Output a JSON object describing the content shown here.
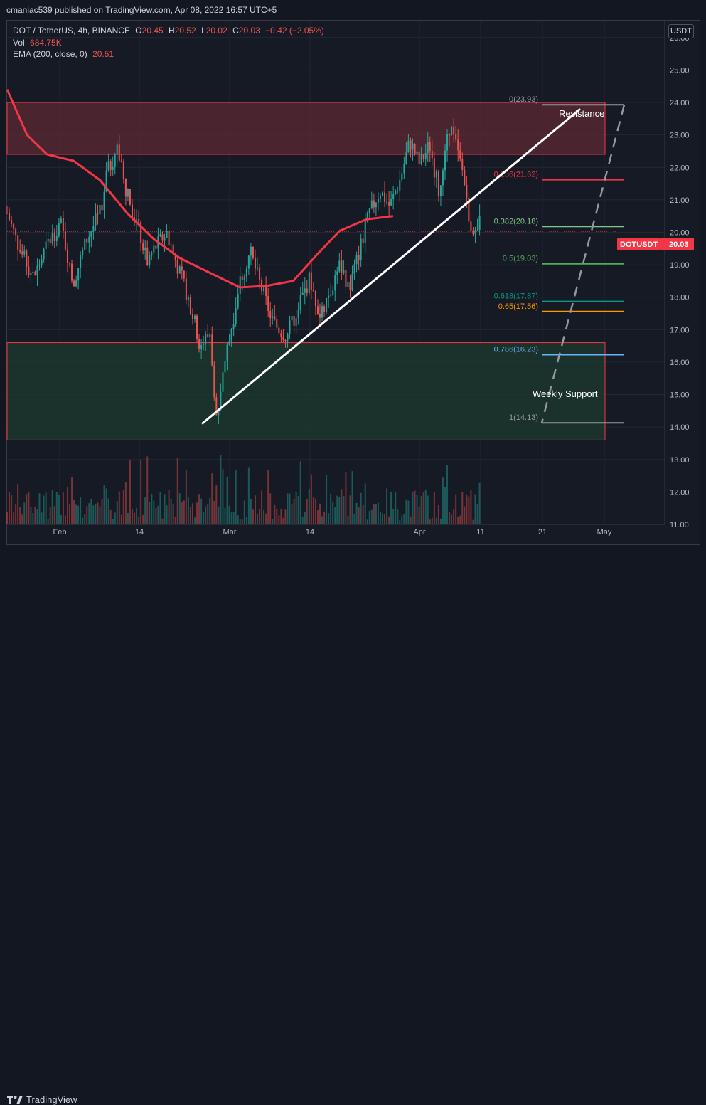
{
  "header": {
    "publisher": "cmaniac539 published on TradingView.com, Apr 08, 2022 16:57 UTC+5"
  },
  "legend": {
    "symbol": "DOT / TetherUS, 4h, BINANCE",
    "open_label": "O",
    "open": "20.45",
    "high_label": "H",
    "high": "20.52",
    "low_label": "L",
    "low": "20.02",
    "close_label": "C",
    "close": "20.03",
    "change": "−0.42 (−2.05%)",
    "vol_label": "Vol",
    "vol": "684.75K",
    "ema_label": "EMA (200, close, 0)",
    "ema": "20.51"
  },
  "currency": "USDT",
  "price_tag": {
    "symbol": "DOTUSDT",
    "value": "20.03"
  },
  "footer": {
    "brand": "TradingView"
  },
  "annotations": {
    "resistance": "Resistance",
    "support": "Weekly Support"
  },
  "colors": {
    "up": "#26a69a",
    "down": "#ef5350",
    "ema": "#f23645",
    "trendline": "#ffffff"
  },
  "chart_data": {
    "type": "candlestick",
    "ylim": [
      11,
      26.5
    ],
    "y_ticks": [
      "26.00",
      "25.00",
      "24.00",
      "23.00",
      "22.00",
      "21.00",
      "20.00",
      "19.00",
      "18.00",
      "17.00",
      "16.00",
      "15.00",
      "14.00",
      "13.00",
      "12.00",
      "11.00"
    ],
    "x_ticks": [
      "Feb",
      "14",
      "Mar",
      "14",
      "Apr",
      "11",
      "21",
      "May"
    ],
    "price_path": [
      [
        0,
        20.6
      ],
      [
        0.04,
        19.4
      ],
      [
        0.08,
        18.6
      ],
      [
        0.12,
        19.6
      ],
      [
        0.16,
        20.3
      ],
      [
        0.2,
        18.5
      ],
      [
        0.24,
        19.8
      ],
      [
        0.28,
        20.6
      ],
      [
        0.3,
        21.8
      ],
      [
        0.33,
        22.6
      ],
      [
        0.36,
        21.2
      ],
      [
        0.39,
        20.3
      ],
      [
        0.42,
        19.1
      ],
      [
        0.45,
        19.6
      ],
      [
        0.48,
        20.0
      ],
      [
        0.52,
        18.7
      ],
      [
        0.55,
        17.8
      ],
      [
        0.58,
        16.5
      ],
      [
        0.61,
        16.9
      ],
      [
        0.63,
        14.1
      ],
      [
        0.66,
        16.3
      ],
      [
        0.7,
        18.5
      ],
      [
        0.73,
        19.4
      ],
      [
        0.76,
        18.4
      ],
      [
        0.8,
        17.2
      ],
      [
        0.84,
        16.8
      ],
      [
        0.88,
        17.8
      ],
      [
        0.91,
        18.6
      ],
      [
        0.94,
        17.4
      ],
      [
        0.97,
        18.2
      ],
      [
        1.0,
        19.0
      ],
      [
        1.03,
        18.3
      ],
      [
        1.06,
        19.5
      ],
      [
        1.09,
        20.6
      ],
      [
        1.12,
        21.3
      ],
      [
        1.15,
        20.8
      ],
      [
        1.18,
        21.6
      ],
      [
        1.21,
        22.8
      ],
      [
        1.24,
        22.1
      ],
      [
        1.27,
        22.7
      ],
      [
        1.3,
        21.1
      ],
      [
        1.33,
        23.3
      ],
      [
        1.35,
        22.6
      ],
      [
        1.37,
        21.8
      ],
      [
        1.39,
        20.4
      ],
      [
        1.41,
        19.9
      ],
      [
        1.42,
        20.3
      ]
    ],
    "ema": {
      "name": "EMA (200, close, 0)",
      "points": [
        [
          0,
          24.4
        ],
        [
          0.06,
          23.0
        ],
        [
          0.12,
          22.4
        ],
        [
          0.2,
          22.2
        ],
        [
          0.28,
          21.6
        ],
        [
          0.36,
          20.6
        ],
        [
          0.44,
          19.8
        ],
        [
          0.52,
          19.2
        ],
        [
          0.6,
          18.8
        ],
        [
          0.7,
          18.3
        ],
        [
          0.78,
          18.35
        ],
        [
          0.86,
          18.5
        ],
        [
          0.93,
          19.3
        ],
        [
          1.0,
          20.05
        ],
        [
          1.08,
          20.4
        ],
        [
          1.16,
          20.5
        ]
      ]
    },
    "volume": {
      "ylim": [
        0,
        1
      ]
    },
    "zones": [
      {
        "name": "resistance-zone",
        "y0": 22.4,
        "y1": 24.0,
        "color": "#5c2a33"
      },
      {
        "name": "support-zone",
        "y0": 13.6,
        "y1": 16.6,
        "color": "#1e3a2f"
      }
    ],
    "trendline": {
      "from": [
        14.1
      ],
      "to": [
        23.8
      ]
    },
    "fib_levels": [
      {
        "label": "0(23.93)",
        "value": 23.93,
        "color": "#9598a1"
      },
      {
        "label": "0.236(21.62)",
        "value": 21.62,
        "color": "#f23645"
      },
      {
        "label": "0.382(20.18)",
        "value": 20.18,
        "color": "#81c784"
      },
      {
        "label": "0.5(19.03)",
        "value": 19.03,
        "color": "#4caf50"
      },
      {
        "label": "0.618(17.87)",
        "value": 17.87,
        "color": "#089981"
      },
      {
        "label": "0.65(17.56)",
        "value": 17.56,
        "color": "#ff9800"
      },
      {
        "label": "0.786(16.23)",
        "value": 16.23,
        "color": "#64b5f6"
      },
      {
        "label": "1(14.13)",
        "value": 14.13,
        "color": "#9598a1"
      }
    ],
    "current_price": 20.03
  }
}
